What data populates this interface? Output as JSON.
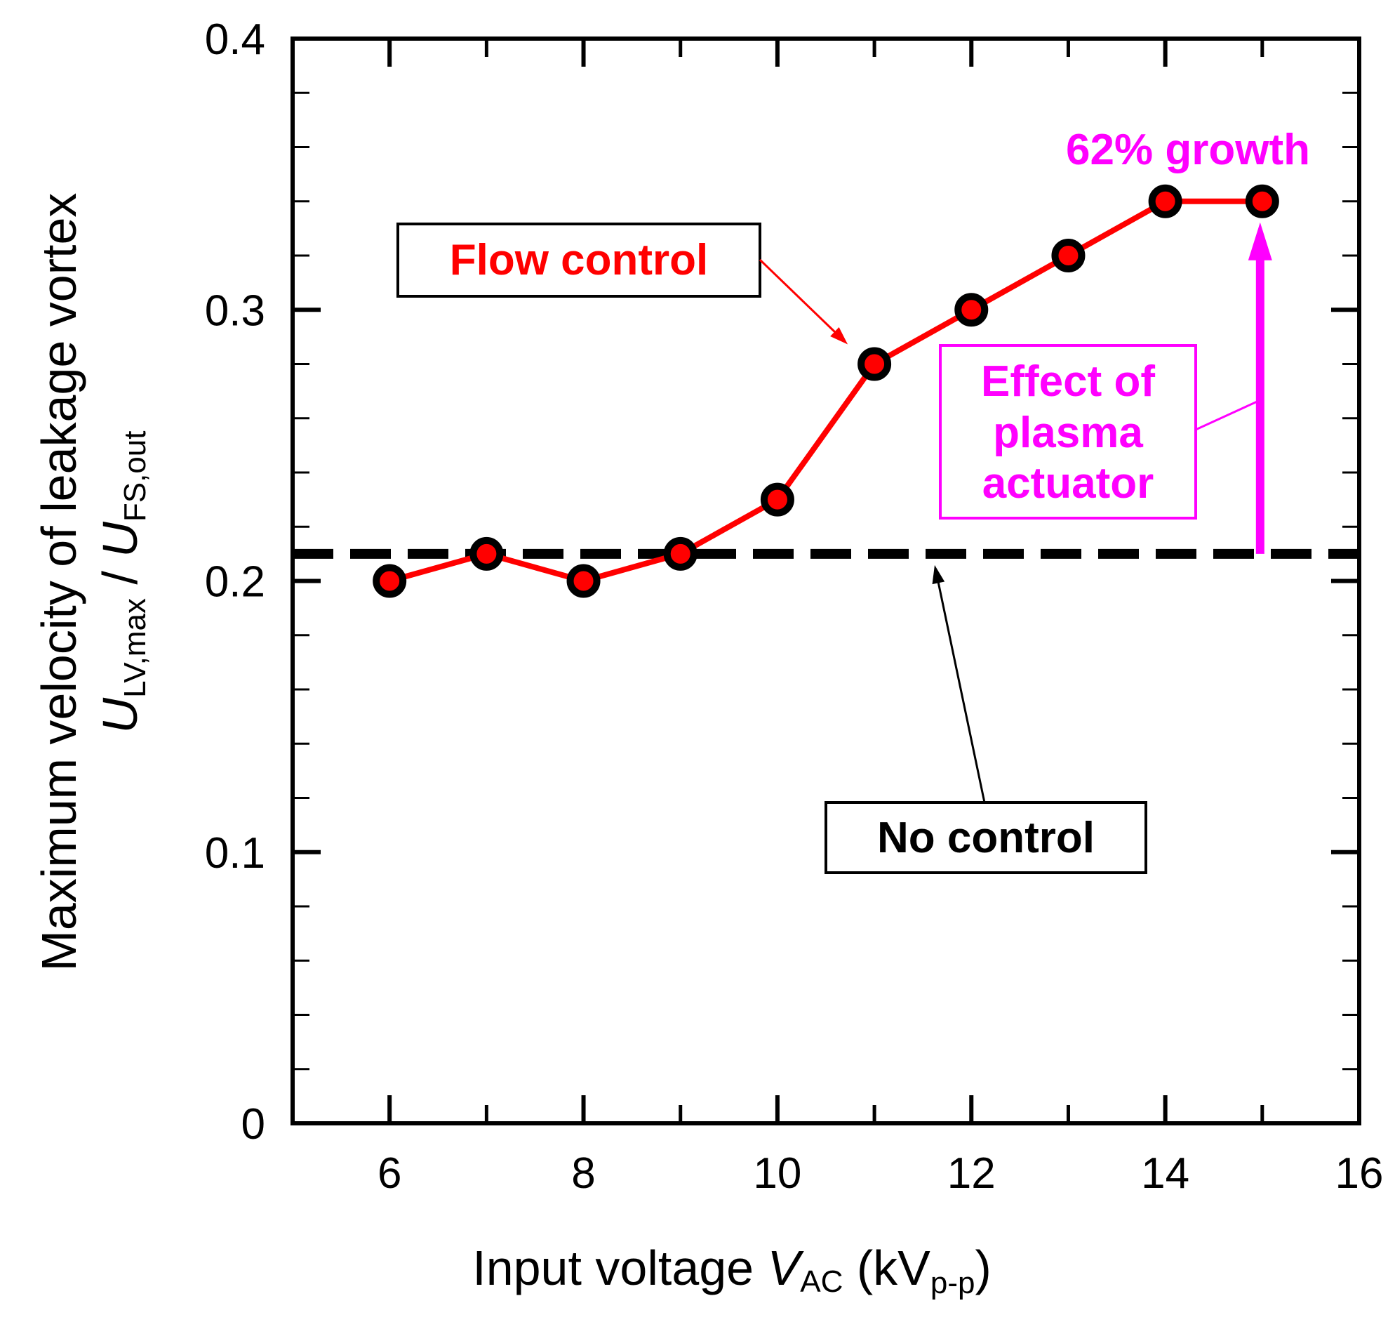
{
  "chart_data": {
    "type": "line",
    "title": "",
    "xlabel": {
      "prefix": "Input voltage ",
      "var": "V",
      "var_sub": "AC",
      "unit_open": " (kV",
      "unit_sub": "p-p",
      "unit_close": ")"
    },
    "ylabel": {
      "line1": "Maximum velocity of leakage vortex",
      "num_var": "U",
      "num_sub": "LV,max",
      "slash": " / ",
      "den_var": "U",
      "den_sub": "FS,out"
    },
    "xlim": [
      5,
      16
    ],
    "ylim": [
      0,
      0.4
    ],
    "x_ticks": [
      {
        "value": 6,
        "label": "6"
      },
      {
        "value": 8,
        "label": "8"
      },
      {
        "value": 10,
        "label": "10"
      },
      {
        "value": 12,
        "label": "12"
      },
      {
        "value": 14,
        "label": "14"
      },
      {
        "value": 16,
        "label": "16"
      }
    ],
    "y_ticks": [
      {
        "value": 0,
        "label": "0"
      },
      {
        "value": 0.1,
        "label": "0.1"
      },
      {
        "value": 0.2,
        "label": "0.2"
      },
      {
        "value": 0.3,
        "label": "0.3"
      },
      {
        "value": 0.4,
        "label": "0.4"
      }
    ],
    "x_minor_step": 1,
    "y_minor_step": 0.02,
    "series": [
      {
        "name": "Flow control",
        "color": "#ff0000",
        "x": [
          6,
          7,
          8,
          9,
          10,
          11,
          12,
          13,
          14,
          15
        ],
        "y": [
          0.2,
          0.21,
          0.2,
          0.21,
          0.23,
          0.28,
          0.3,
          0.32,
          0.34,
          0.34
        ]
      }
    ],
    "reference_line": {
      "name": "No control",
      "y": 0.21,
      "color": "#000000",
      "style": "dashed"
    },
    "annotations": {
      "flow_control_label": "Flow control",
      "no_control_label": "No control",
      "effect_label_lines": [
        "Effect of",
        "plasma",
        "actuator"
      ],
      "growth_label": "62% growth",
      "accent_color": "#ff00ff"
    }
  }
}
